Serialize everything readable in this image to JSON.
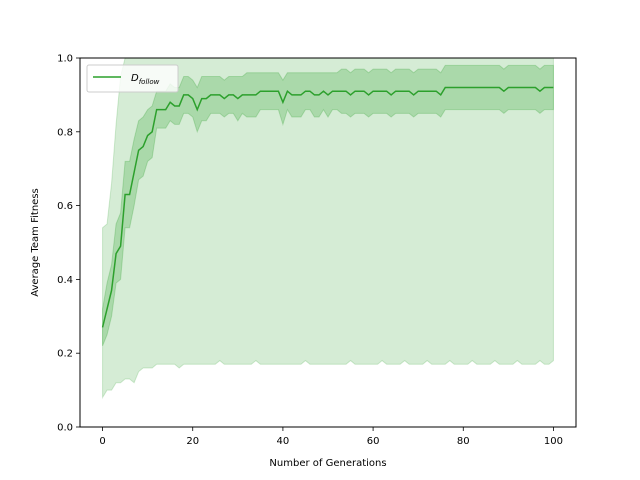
{
  "chart_data": {
    "type": "line",
    "title": "",
    "xlabel": "Number of Generations",
    "ylabel": "Average Team Fitness",
    "xlim": [
      -5,
      105
    ],
    "ylim": [
      0.0,
      1.0
    ],
    "xticks": [
      "0",
      "20",
      "40",
      "60",
      "80",
      "100"
    ],
    "yticks": [
      "0.0",
      "0.2",
      "0.4",
      "0.6",
      "0.8",
      "1.0"
    ],
    "grid": false,
    "legend_position": "top-left",
    "colors": {
      "line": "#2ca02c",
      "band_inner": "#2ca02c",
      "band_outer": "#2ca02c"
    },
    "series": [
      {
        "name_main": "D",
        "name_sub": "follow",
        "x": [
          0,
          1,
          2,
          3,
          4,
          5,
          6,
          7,
          8,
          9,
          10,
          11,
          12,
          13,
          14,
          15,
          16,
          17,
          18,
          19,
          20,
          21,
          22,
          23,
          24,
          25,
          26,
          27,
          28,
          29,
          30,
          31,
          32,
          33,
          34,
          35,
          36,
          37,
          38,
          39,
          40,
          41,
          42,
          43,
          44,
          45,
          46,
          47,
          48,
          49,
          50,
          51,
          52,
          53,
          54,
          55,
          56,
          57,
          58,
          59,
          60,
          61,
          62,
          63,
          64,
          65,
          66,
          67,
          68,
          69,
          70,
          71,
          72,
          73,
          74,
          75,
          76,
          77,
          78,
          79,
          80,
          81,
          82,
          83,
          84,
          85,
          86,
          87,
          88,
          89,
          90,
          91,
          92,
          93,
          94,
          95,
          96,
          97,
          98,
          99,
          100
        ],
        "mean": [
          0.27,
          0.32,
          0.37,
          0.47,
          0.49,
          0.63,
          0.63,
          0.69,
          0.75,
          0.76,
          0.79,
          0.8,
          0.86,
          0.86,
          0.86,
          0.88,
          0.87,
          0.87,
          0.9,
          0.9,
          0.89,
          0.86,
          0.89,
          0.89,
          0.9,
          0.9,
          0.9,
          0.89,
          0.9,
          0.9,
          0.89,
          0.9,
          0.9,
          0.9,
          0.9,
          0.91,
          0.91,
          0.91,
          0.91,
          0.91,
          0.88,
          0.91,
          0.9,
          0.9,
          0.9,
          0.91,
          0.91,
          0.9,
          0.9,
          0.91,
          0.9,
          0.91,
          0.91,
          0.91,
          0.91,
          0.9,
          0.91,
          0.91,
          0.91,
          0.9,
          0.91,
          0.91,
          0.91,
          0.91,
          0.9,
          0.91,
          0.91,
          0.91,
          0.91,
          0.9,
          0.91,
          0.91,
          0.91,
          0.91,
          0.91,
          0.9,
          0.92,
          0.92,
          0.92,
          0.92,
          0.92,
          0.92,
          0.92,
          0.92,
          0.92,
          0.92,
          0.92,
          0.92,
          0.92,
          0.91,
          0.92,
          0.92,
          0.92,
          0.92,
          0.92,
          0.92,
          0.92,
          0.91,
          0.92,
          0.92,
          0.92
        ],
        "std_upper": [
          0.32,
          0.39,
          0.44,
          0.55,
          0.58,
          0.72,
          0.72,
          0.78,
          0.83,
          0.84,
          0.86,
          0.87,
          0.91,
          0.91,
          0.91,
          0.93,
          0.92,
          0.92,
          0.95,
          0.95,
          0.94,
          0.92,
          0.95,
          0.95,
          0.95,
          0.95,
          0.95,
          0.94,
          0.95,
          0.95,
          0.95,
          0.95,
          0.96,
          0.96,
          0.96,
          0.96,
          0.96,
          0.96,
          0.96,
          0.96,
          0.94,
          0.96,
          0.96,
          0.96,
          0.96,
          0.96,
          0.96,
          0.96,
          0.96,
          0.96,
          0.96,
          0.96,
          0.96,
          0.97,
          0.97,
          0.96,
          0.97,
          0.97,
          0.97,
          0.96,
          0.97,
          0.97,
          0.97,
          0.97,
          0.96,
          0.97,
          0.97,
          0.97,
          0.97,
          0.96,
          0.97,
          0.97,
          0.97,
          0.97,
          0.97,
          0.96,
          0.98,
          0.98,
          0.98,
          0.98,
          0.98,
          0.98,
          0.98,
          0.98,
          0.98,
          0.98,
          0.98,
          0.98,
          0.98,
          0.97,
          0.98,
          0.98,
          0.98,
          0.98,
          0.98,
          0.98,
          0.98,
          0.97,
          0.98,
          0.98,
          0.98
        ],
        "std_lower": [
          0.22,
          0.25,
          0.3,
          0.39,
          0.4,
          0.54,
          0.54,
          0.6,
          0.67,
          0.68,
          0.72,
          0.73,
          0.81,
          0.81,
          0.81,
          0.83,
          0.82,
          0.82,
          0.85,
          0.85,
          0.84,
          0.8,
          0.83,
          0.83,
          0.85,
          0.85,
          0.85,
          0.84,
          0.85,
          0.85,
          0.83,
          0.85,
          0.84,
          0.84,
          0.84,
          0.86,
          0.86,
          0.86,
          0.86,
          0.86,
          0.82,
          0.86,
          0.84,
          0.84,
          0.84,
          0.86,
          0.86,
          0.84,
          0.84,
          0.86,
          0.84,
          0.86,
          0.86,
          0.85,
          0.85,
          0.84,
          0.85,
          0.85,
          0.85,
          0.84,
          0.85,
          0.85,
          0.85,
          0.85,
          0.84,
          0.85,
          0.85,
          0.85,
          0.85,
          0.84,
          0.85,
          0.85,
          0.85,
          0.85,
          0.85,
          0.84,
          0.86,
          0.86,
          0.86,
          0.86,
          0.86,
          0.86,
          0.86,
          0.86,
          0.86,
          0.86,
          0.86,
          0.86,
          0.86,
          0.85,
          0.86,
          0.86,
          0.86,
          0.86,
          0.86,
          0.86,
          0.86,
          0.85,
          0.86,
          0.86,
          0.86
        ],
        "range_upper": [
          0.54,
          0.55,
          0.66,
          0.82,
          0.95,
          1.0,
          1.0,
          1.0,
          1.0,
          1.0,
          1.0,
          1.0,
          1.0,
          1.0,
          1.0,
          1.0,
          1.0,
          1.0,
          1.0,
          1.0,
          1.0,
          1.0,
          1.0,
          1.0,
          1.0,
          1.0,
          1.0,
          1.0,
          1.0,
          1.0,
          1.0,
          1.0,
          1.0,
          1.0,
          1.0,
          1.0,
          1.0,
          1.0,
          1.0,
          1.0,
          1.0,
          1.0,
          1.0,
          1.0,
          1.0,
          1.0,
          1.0,
          1.0,
          1.0,
          1.0,
          1.0,
          1.0,
          1.0,
          1.0,
          1.0,
          1.0,
          1.0,
          1.0,
          1.0,
          1.0,
          1.0,
          1.0,
          1.0,
          1.0,
          1.0,
          1.0,
          1.0,
          1.0,
          1.0,
          1.0,
          1.0,
          1.0,
          1.0,
          1.0,
          1.0,
          1.0,
          1.0,
          1.0,
          1.0,
          1.0,
          1.0,
          1.0,
          1.0,
          1.0,
          1.0,
          1.0,
          1.0,
          1.0,
          1.0,
          1.0,
          1.0,
          1.0,
          1.0,
          1.0,
          1.0,
          1.0,
          1.0,
          1.0,
          1.0,
          1.0,
          1.0
        ],
        "range_lower": [
          0.08,
          0.1,
          0.1,
          0.12,
          0.12,
          0.13,
          0.13,
          0.12,
          0.15,
          0.16,
          0.16,
          0.16,
          0.17,
          0.17,
          0.17,
          0.17,
          0.17,
          0.16,
          0.17,
          0.17,
          0.17,
          0.17,
          0.17,
          0.17,
          0.17,
          0.17,
          0.18,
          0.17,
          0.17,
          0.17,
          0.17,
          0.17,
          0.17,
          0.17,
          0.18,
          0.17,
          0.17,
          0.17,
          0.17,
          0.17,
          0.17,
          0.17,
          0.17,
          0.17,
          0.17,
          0.18,
          0.17,
          0.17,
          0.17,
          0.17,
          0.17,
          0.17,
          0.17,
          0.17,
          0.17,
          0.18,
          0.17,
          0.17,
          0.17,
          0.17,
          0.17,
          0.17,
          0.18,
          0.17,
          0.17,
          0.17,
          0.17,
          0.18,
          0.17,
          0.17,
          0.17,
          0.17,
          0.18,
          0.17,
          0.17,
          0.17,
          0.17,
          0.18,
          0.17,
          0.17,
          0.17,
          0.17,
          0.18,
          0.17,
          0.17,
          0.17,
          0.17,
          0.18,
          0.17,
          0.17,
          0.17,
          0.17,
          0.18,
          0.17,
          0.17,
          0.17,
          0.17,
          0.18,
          0.17,
          0.17,
          0.18
        ]
      }
    ]
  }
}
